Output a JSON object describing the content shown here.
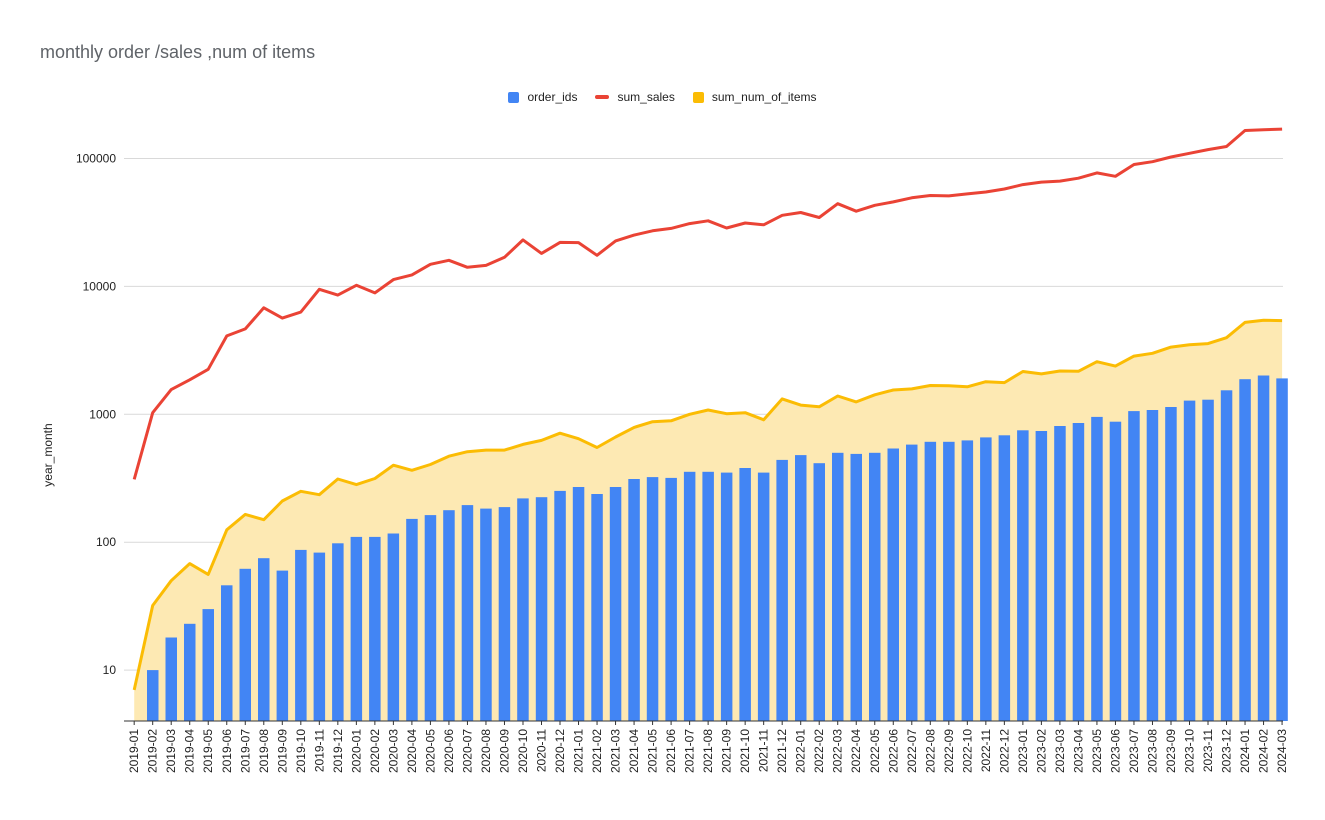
{
  "chart_data": {
    "type": "bar",
    "title": "monthly order /sales ,num of items",
    "xlabel": "",
    "ylabel": "year_month",
    "yscale": "log",
    "ylim": [
      4,
      200000
    ],
    "y_ticks": [
      10,
      100,
      1000,
      10000,
      100000
    ],
    "grid": true,
    "legend_position": "top",
    "colors": {
      "order_ids": "#4285f4",
      "sum_sales": "#ea4335",
      "sum_num_of_items": "#fbbc04",
      "area_fill": "#fde9b3"
    },
    "categories": [
      "2019-01",
      "2019-02",
      "2019-03",
      "2019-04",
      "2019-05",
      "2019-06",
      "2019-07",
      "2019-08",
      "2019-09",
      "2019-10",
      "2019-11",
      "2019-12",
      "2020-01",
      "2020-02",
      "2020-03",
      "2020-04",
      "2020-05",
      "2020-06",
      "2020-07",
      "2020-08",
      "2020-09",
      "2020-10",
      "2020-11",
      "2020-12",
      "2021-01",
      "2021-02",
      "2021-03",
      "2021-04",
      "2021-05",
      "2021-06",
      "2021-07",
      "2021-08",
      "2021-09",
      "2021-10",
      "2021-11",
      "2021-12",
      "2022-01",
      "2022-02",
      "2022-03",
      "2022-04",
      "2022-05",
      "2022-06",
      "2022-07",
      "2022-08",
      "2022-09",
      "2022-10",
      "2022-11",
      "2022-12",
      "2023-01",
      "2023-02",
      "2023-03",
      "2023-04",
      "2023-05",
      "2023-06",
      "2023-07",
      "2023-08",
      "2023-09",
      "2023-10",
      "2023-11",
      "2023-12",
      "2024-01",
      "2024-02",
      "2024-03"
    ],
    "series": [
      {
        "name": "order_ids",
        "kind": "bar",
        "values": [
          3,
          10,
          18,
          23,
          30,
          46,
          62,
          75,
          60,
          87,
          83,
          98,
          110,
          110,
          117,
          152,
          163,
          178,
          195,
          183,
          188,
          220,
          225,
          252,
          270,
          238,
          270,
          312,
          323,
          318,
          355,
          355,
          350,
          380,
          350,
          440,
          480,
          415,
          500,
          490,
          500,
          540,
          580,
          610,
          610,
          625,
          660,
          685,
          750,
          740,
          810,
          855,
          955,
          875,
          1060,
          1080,
          1140,
          1280,
          1300,
          1540,
          1880,
          2010,
          1910
        ]
      },
      {
        "name": "sum_sales",
        "kind": "line",
        "values": [
          310,
          1030,
          1560,
          1860,
          2250,
          4100,
          4650,
          6800,
          5650,
          6300,
          9500,
          8550,
          10200,
          8900,
          11300,
          12300,
          14900,
          16000,
          14100,
          14600,
          16900,
          23100,
          18100,
          22100,
          22000,
          17500,
          22700,
          25200,
          27200,
          28400,
          31000,
          32600,
          28600,
          31300,
          30300,
          36000,
          37800,
          34600,
          44300,
          38700,
          43100,
          45800,
          49300,
          51400,
          51000,
          52900,
          54700,
          57700,
          62500,
          65400,
          66600,
          70100,
          77100,
          72600,
          89700,
          94400,
          102800,
          109800,
          117400,
          124200,
          165500,
          167700,
          169700
        ]
      },
      {
        "name": "sum_num_of_items",
        "kind": "area",
        "values": [
          7,
          32,
          50,
          68,
          56,
          125,
          165,
          150,
          210,
          250,
          235,
          312,
          282,
          315,
          400,
          365,
          405,
          470,
          510,
          525,
          525,
          582,
          625,
          712,
          644,
          550,
          665,
          790,
          875,
          890,
          1000,
          1080,
          1010,
          1030,
          905,
          1320,
          1180,
          1145,
          1390,
          1250,
          1420,
          1550,
          1580,
          1680,
          1670,
          1640,
          1800,
          1770,
          2160,
          2070,
          2180,
          2170,
          2580,
          2380,
          2850,
          3000,
          3350,
          3500,
          3570,
          3970,
          5230,
          5430,
          5400
        ]
      }
    ]
  }
}
